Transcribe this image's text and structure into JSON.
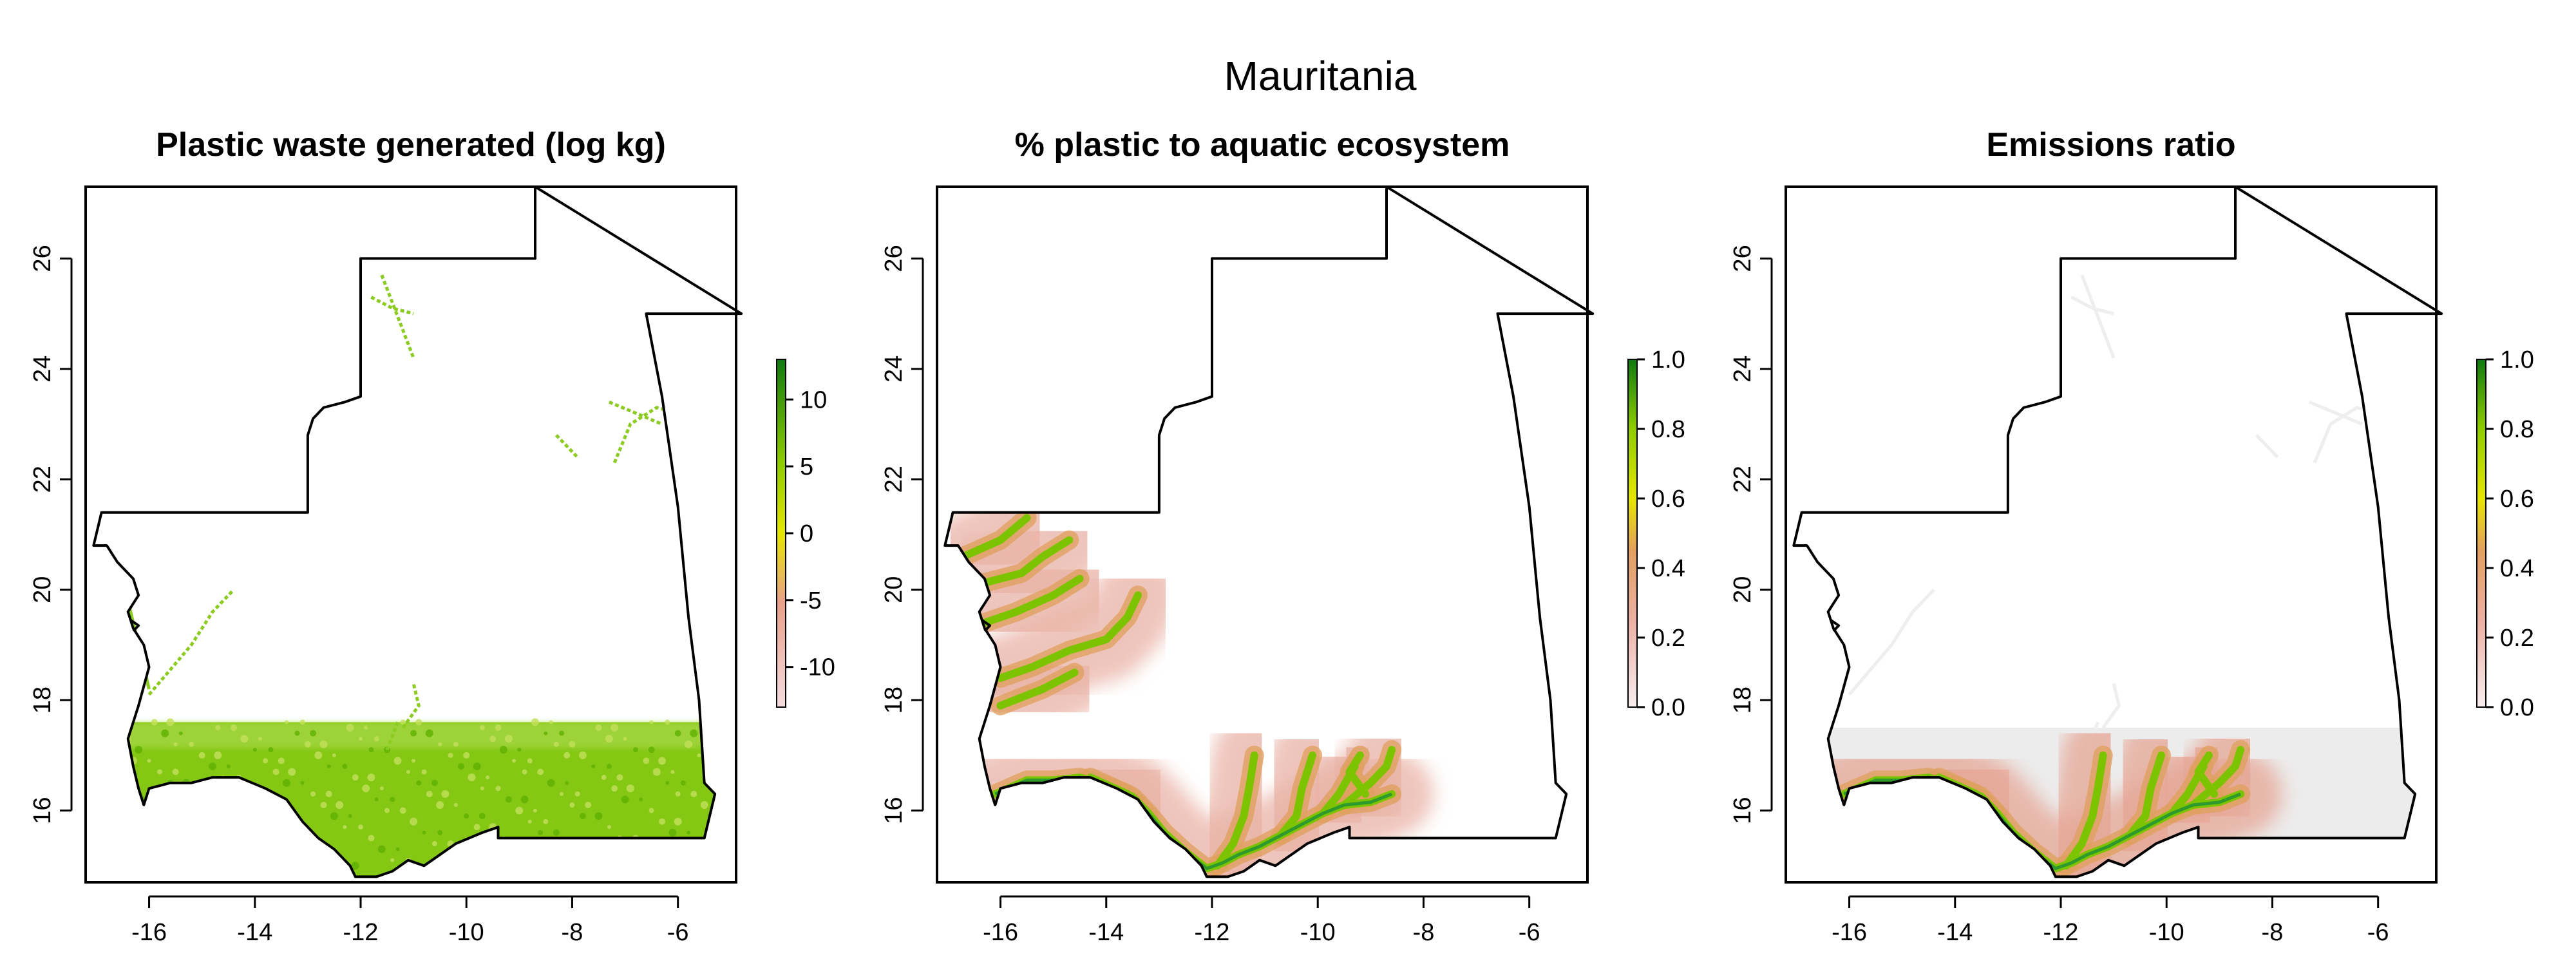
{
  "figure": {
    "title": "Mauritania"
  },
  "panels": [
    {
      "title": "Plastic waste generated (log kg)",
      "style": "waste",
      "legend": {
        "min": -13,
        "max": 13,
        "ticks": [
          "10",
          "5",
          "0",
          "-5",
          "-10"
        ],
        "tick_values": [
          10,
          5,
          0,
          -5,
          -10
        ]
      }
    },
    {
      "title": "% plastic to aquatic ecosystem",
      "style": "aquatic",
      "legend": {
        "min": 0,
        "max": 1,
        "ticks": [
          "1.0",
          "0.8",
          "0.6",
          "0.4",
          "0.2",
          "0.0"
        ],
        "tick_values": [
          1.0,
          0.8,
          0.6,
          0.4,
          0.2,
          0.0
        ]
      }
    },
    {
      "title": "Emissions ratio",
      "style": "emissions",
      "legend": {
        "min": 0,
        "max": 1,
        "ticks": [
          "1.0",
          "0.8",
          "0.6",
          "0.4",
          "0.2",
          "0.0"
        ],
        "tick_values": [
          1.0,
          0.8,
          0.6,
          0.4,
          0.2,
          0.0
        ]
      }
    }
  ],
  "axes": {
    "x_ticks": [
      "-16",
      "-14",
      "-12",
      "-10",
      "-8",
      "-6"
    ],
    "x_values": [
      -16,
      -14,
      -12,
      -10,
      -8,
      -6
    ],
    "y_ticks": [
      "16",
      "18",
      "20",
      "22",
      "24",
      "26"
    ],
    "y_values": [
      16,
      18,
      20,
      22,
      24,
      26
    ],
    "xlim": [
      -17.2,
      -4.9
    ],
    "ylim": [
      14.7,
      27.3
    ]
  },
  "colors": {
    "green_high": "#1a8a1a",
    "yellow_green": "#7dc400",
    "yellow": "#e6e600",
    "salmon": "#e8a08a",
    "pink_low": "#f5e4e6",
    "grey_zero": "#ececec"
  }
}
